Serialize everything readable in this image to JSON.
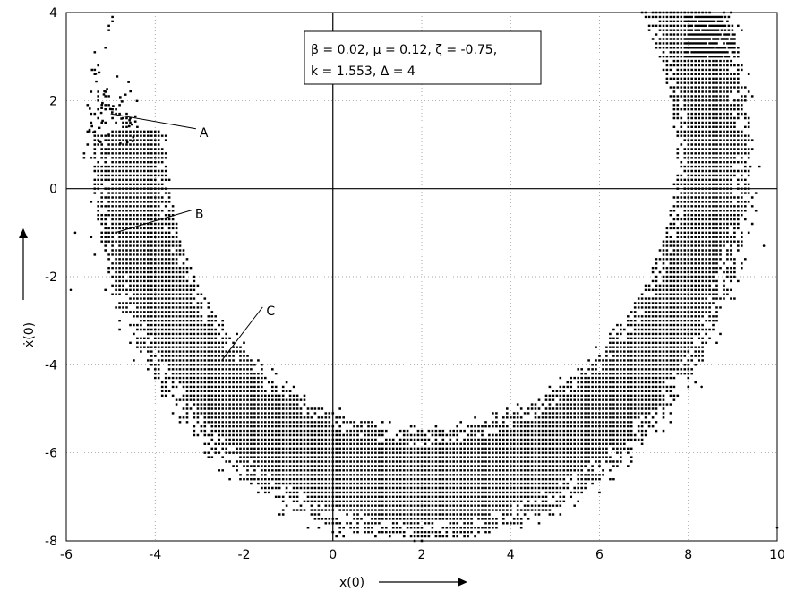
{
  "chart_data": {
    "type": "scatter",
    "title": "",
    "xlabel": "x(0)",
    "ylabel": "ẋ(0)",
    "xlim": [
      -6,
      10
    ],
    "ylim": [
      -8,
      4
    ],
    "x_ticks": [
      -6,
      -4,
      -2,
      0,
      2,
      4,
      6,
      8,
      10
    ],
    "y_ticks": [
      -8,
      -6,
      -4,
      -2,
      0,
      2,
      4
    ],
    "x_tick_labels": [
      "-6",
      "-4",
      "-2",
      "0",
      "2",
      "4",
      "6",
      "8",
      "10"
    ],
    "y_tick_labels": [
      "-8",
      "-6",
      "-4",
      "-2",
      "0",
      "2",
      "4"
    ],
    "grid": true,
    "grid_step": {
      "x": 2,
      "y": 2
    },
    "marker_color": "#000000",
    "parameter_box": {
      "line1": "β = 0.02, μ = 0.12, ζ = -0.75,",
      "line2": "k = 1.553, Δ = 4",
      "placement": "top-center"
    },
    "annotations": [
      {
        "label": "A",
        "point": [
          -5.0,
          1.7
        ]
      },
      {
        "label": "B",
        "point": [
          -4.9,
          -1.0
        ]
      },
      {
        "label": "C",
        "point": [
          -2.5,
          -3.9
        ]
      }
    ],
    "series": [
      {
        "region": "crescent-shaped basin (dense dot lattice)",
        "lattice_step": {
          "x": 0.08,
          "y": 0.1
        },
        "ellipse_center": [
          2.0,
          0.8
        ],
        "outer_semi_axes": [
          7.4,
          8.8
        ],
        "inner_semi_axes": [
          5.7,
          6.3
        ],
        "band_y_range": [
          -8.0,
          4.0
        ],
        "left_arm_tip": [
          -5.2,
          2.7
        ],
        "right_arm_top": [
          8.6,
          4.0
        ]
      }
    ]
  }
}
